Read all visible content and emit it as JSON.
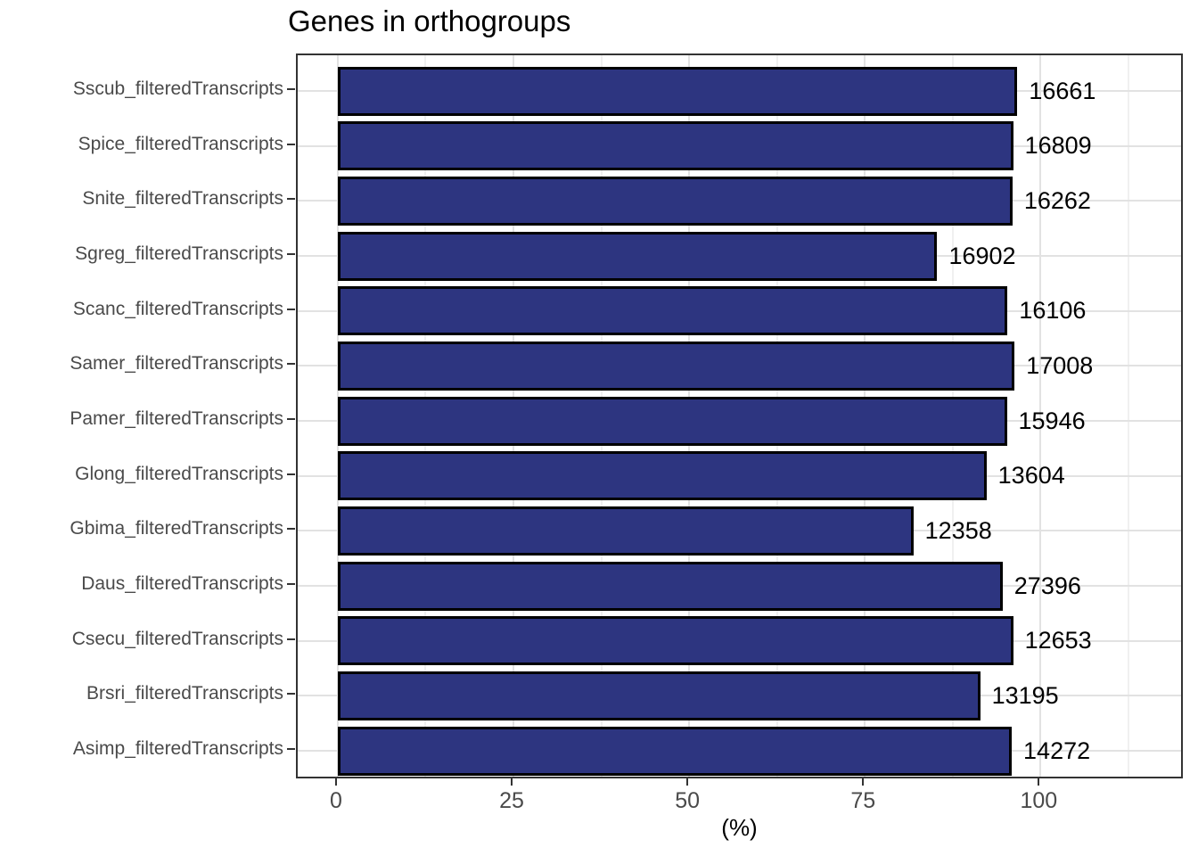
{
  "chart_data": {
    "type": "bar",
    "orientation": "horizontal",
    "title": "Genes in orthogroups",
    "xlabel": "(%)",
    "x_tick_labels": [
      "0",
      "25",
      "50",
      "75",
      "100"
    ],
    "x_ticks": [
      0,
      25,
      50,
      75,
      100
    ],
    "x_minor_ticks": [
      12.5,
      37.5,
      62.5,
      87.5,
      112.5
    ],
    "xlim": [
      -5.7,
      120.5
    ],
    "grid": "major-and-minor-vertical, major-horizontal",
    "legend": "none",
    "rows": [
      {
        "category": "Sscub_filteredTranscripts",
        "percent": 96.7,
        "count": "16661"
      },
      {
        "category": "Spice_filteredTranscripts",
        "percent": 96.1,
        "count": "16809"
      },
      {
        "category": "Snite_filteredTranscripts",
        "percent": 96.0,
        "count": "16262"
      },
      {
        "category": "Sgreg_filteredTranscripts",
        "percent": 85.3,
        "count": "16902"
      },
      {
        "category": "Scanc_filteredTranscripts",
        "percent": 95.3,
        "count": "16106"
      },
      {
        "category": "Samer_filteredTranscripts",
        "percent": 96.3,
        "count": "17008"
      },
      {
        "category": "Pamer_filteredTranscripts",
        "percent": 95.2,
        "count": "15946"
      },
      {
        "category": "Glong_filteredTranscripts",
        "percent": 92.3,
        "count": "13604"
      },
      {
        "category": "Gbima_filteredTranscripts",
        "percent": 81.9,
        "count": "12358"
      },
      {
        "category": "Daus_filteredTranscripts",
        "percent": 94.6,
        "count": "27396"
      },
      {
        "category": "Csecu_filteredTranscripts",
        "percent": 96.1,
        "count": "12653"
      },
      {
        "category": "Brsri_filteredTranscripts",
        "percent": 91.4,
        "count": "13195"
      },
      {
        "category": "Asimp_filteredTranscripts",
        "percent": 95.9,
        "count": "14272"
      }
    ],
    "colors": {
      "bar_fill": "#2d3580",
      "bar_border": "#000000",
      "grid_major": "#e2e2e2",
      "grid_minor": "#f0f0f0",
      "panel_border": "#333333",
      "axis_text": "#4a4a4a",
      "title_text": "#000000"
    }
  }
}
